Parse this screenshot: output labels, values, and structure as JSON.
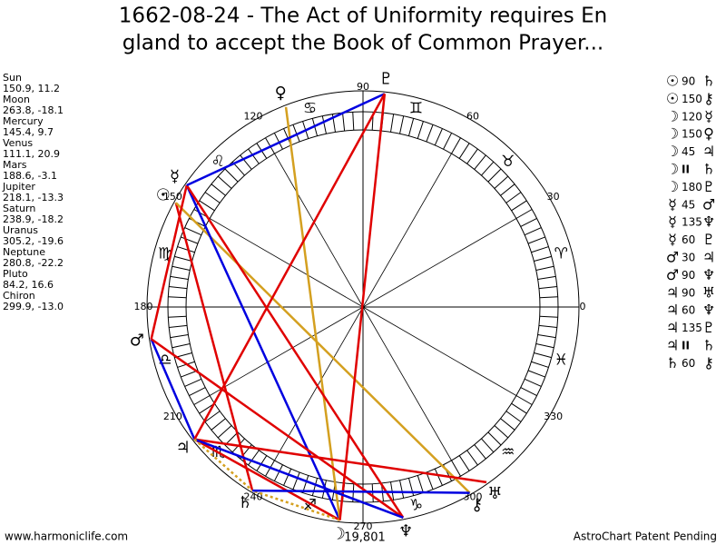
{
  "title_lines": [
    "1662-08-24 - The Act of Uniformity requires En",
    "gland to accept the Book of Common Prayer..."
  ],
  "planets": [
    {
      "name": "Sun",
      "glyph": "☉",
      "position": "150.9, 11.2"
    },
    {
      "name": "Moon",
      "glyph": "☽",
      "position": "263.8, -18.1"
    },
    {
      "name": "Mercury",
      "glyph": "☿",
      "position": "145.4, 9.7"
    },
    {
      "name": "Venus",
      "glyph": "♀",
      "position": "111.1, 20.9"
    },
    {
      "name": "Mars",
      "glyph": "♂",
      "position": "188.6, -3.1"
    },
    {
      "name": "Jupiter",
      "glyph": "♃",
      "position": "218.1, -13.3"
    },
    {
      "name": "Saturn",
      "glyph": "♄",
      "position": "238.9, -18.2"
    },
    {
      "name": "Uranus",
      "glyph": "♅",
      "position": "305.2, -19.6"
    },
    {
      "name": "Neptune",
      "glyph": "♆",
      "position": "280.8, -22.2"
    },
    {
      "name": "Pluto",
      "glyph": "♇",
      "position": "84.2, 16.6"
    },
    {
      "name": "Chiron",
      "glyph": "⚷",
      "position": "299.9, -13.0"
    }
  ],
  "aspects": [
    {
      "a": "☉",
      "angle": "90",
      "b": "♄",
      "color": "#e00000",
      "style": "solid"
    },
    {
      "a": "☉",
      "angle": "150",
      "b": "⚷",
      "color": "#d4a020",
      "style": "solid"
    },
    {
      "a": "☽",
      "angle": "120",
      "b": "☿",
      "color": "#0000e0",
      "style": "solid"
    },
    {
      "a": "☽",
      "angle": "150",
      "b": "♀",
      "color": "#d4a020",
      "style": "solid"
    },
    {
      "a": "☽",
      "angle": "45",
      "b": "♃",
      "color": "#e00000",
      "style": "solid"
    },
    {
      "a": "☽",
      "angle": "II",
      "b": "♄",
      "color": "#d4a020",
      "style": "dotted"
    },
    {
      "a": "☽",
      "angle": "180",
      "b": "♇",
      "color": "#e00000",
      "style": "solid"
    },
    {
      "a": "☿",
      "angle": "45",
      "b": "♂",
      "color": "#e00000",
      "style": "solid"
    },
    {
      "a": "☿",
      "angle": "135",
      "b": "♆",
      "color": "#e00000",
      "style": "solid"
    },
    {
      "a": "☿",
      "angle": "60",
      "b": "♇",
      "color": "#0000e0",
      "style": "solid"
    },
    {
      "a": "♂",
      "angle": "30",
      "b": "♃",
      "color": "#0000e0",
      "style": "solid"
    },
    {
      "a": "♂",
      "angle": "90",
      "b": "♆",
      "color": "#e00000",
      "style": "solid"
    },
    {
      "a": "♃",
      "angle": "90",
      "b": "♅",
      "color": "#e00000",
      "style": "solid"
    },
    {
      "a": "♃",
      "angle": "60",
      "b": "♆",
      "color": "#0000e0",
      "style": "solid"
    },
    {
      "a": "♃",
      "angle": "135",
      "b": "♇",
      "color": "#e00000",
      "style": "solid"
    },
    {
      "a": "♃",
      "angle": "II",
      "b": "♄",
      "color": "#d4a020",
      "style": "dotted"
    },
    {
      "a": "♄",
      "angle": "60",
      "b": "⚷",
      "color": "#0000e0",
      "style": "solid"
    }
  ],
  "signs": [
    "♈",
    "♉",
    "♊",
    "♋",
    "♌",
    "♍",
    "♎",
    "♏",
    "♐",
    "♑",
    "♒",
    "♓"
  ],
  "degree_labels": [
    "0",
    "30",
    "60",
    "90",
    "120",
    "150",
    "180",
    "210",
    "240",
    "270",
    "300",
    "330"
  ],
  "bottom_number": "19,801",
  "footer_left": "www.harmoniclife.com",
  "footer_right": "AstroChart Patent Pending"
}
